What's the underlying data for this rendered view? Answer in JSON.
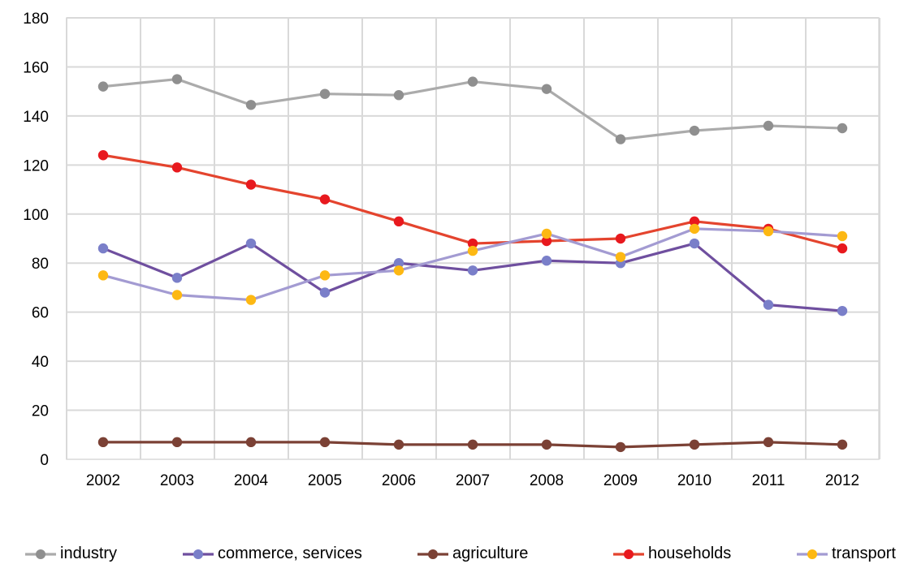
{
  "chart_data": {
    "type": "line",
    "categories": [
      "2002",
      "2003",
      "2004",
      "2005",
      "2006",
      "2007",
      "2008",
      "2009",
      "2010",
      "2011",
      "2012"
    ],
    "ylim": [
      0,
      180
    ],
    "yticks": [
      0,
      20,
      40,
      60,
      80,
      100,
      120,
      140,
      160,
      180
    ],
    "grid": true,
    "legend_position": "bottom",
    "series": [
      {
        "name": "industry",
        "line_color": "#ababab",
        "marker_color": "#8f8f8f",
        "values": [
          152,
          155,
          144.5,
          149,
          148.5,
          154,
          151,
          130.5,
          134,
          136,
          135
        ]
      },
      {
        "name": "commerce, services",
        "line_color": "#6f4f9f",
        "marker_color": "#7a7fc9",
        "values": [
          86,
          74,
          88,
          68,
          80,
          77,
          81,
          80,
          88,
          63,
          60.5
        ]
      },
      {
        "name": "agriculture",
        "line_color": "#7b4135",
        "marker_color": "#7b4135",
        "values": [
          7,
          7,
          7,
          7,
          6,
          6,
          6,
          5,
          6,
          7,
          6
        ]
      },
      {
        "name": "households",
        "line_color": "#e4442e",
        "marker_color": "#e8191e",
        "values": [
          124,
          119,
          112,
          106,
          97,
          88,
          89,
          90,
          97,
          94,
          86
        ]
      },
      {
        "name": "transport",
        "line_color": "#a39bd2",
        "marker_color": "#fdb813",
        "values": [
          75,
          67,
          65,
          75,
          77,
          85,
          92,
          82.5,
          94,
          93,
          91
        ]
      }
    ]
  }
}
